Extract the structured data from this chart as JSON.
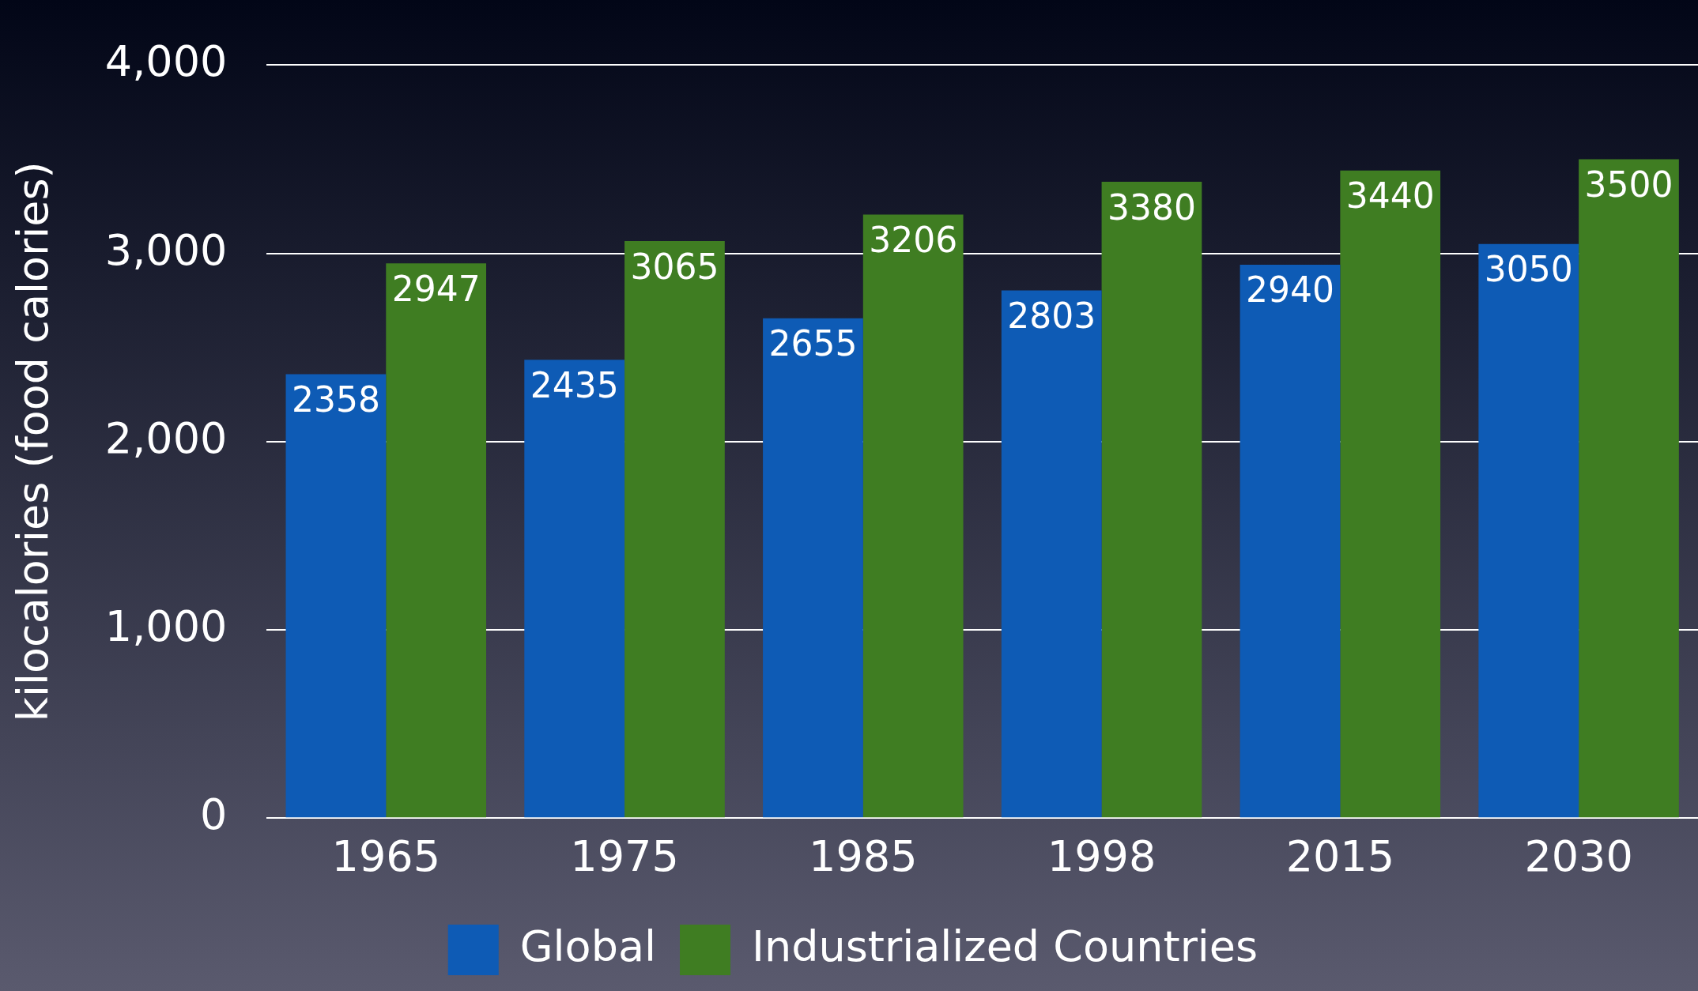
{
  "chart_data": {
    "type": "bar",
    "ylabel": "kilocalories (food calories)",
    "categories": [
      "1965",
      "1975",
      "1985",
      "1998",
      "2015",
      "2030"
    ],
    "series": [
      {
        "name": "Global",
        "color": "#0e5bb5",
        "values": [
          2358,
          2435,
          2655,
          2803,
          2940,
          3050
        ]
      },
      {
        "name": "Industrialized Countries",
        "color": "#3f7d22",
        "values": [
          2947,
          3065,
          3206,
          3380,
          3440,
          3500
        ]
      }
    ],
    "ylim": [
      0,
      4000
    ],
    "yticks": [
      {
        "value": 0,
        "label": "0"
      },
      {
        "value": 1000,
        "label": "1,000"
      },
      {
        "value": 2000,
        "label": "2,000"
      },
      {
        "value": 3000,
        "label": "3,000"
      },
      {
        "value": 4000,
        "label": "4,000"
      }
    ],
    "grid": "y",
    "legend": "bottom",
    "data_labels": true
  }
}
